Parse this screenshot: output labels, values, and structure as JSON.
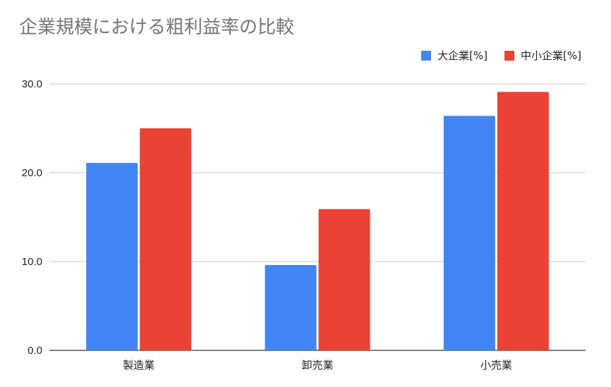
{
  "chart_data": {
    "type": "bar",
    "title": "企業規模における粗利益率の比較",
    "xlabel": "",
    "ylabel": "",
    "categories": [
      "製造業",
      "卸売業",
      "小売業"
    ],
    "series": [
      {
        "name": "大企業[%]",
        "color": "#4285f4",
        "values": [
          21.1,
          9.6,
          26.4
        ]
      },
      {
        "name": "中小企業[%]",
        "color": "#ea4335",
        "values": [
          25.0,
          15.9,
          29.1
        ]
      }
    ],
    "ylim": [
      0,
      30
    ],
    "yticks": [
      "0.0",
      "10.0",
      "20.0",
      "30.0"
    ],
    "grid": true,
    "legend_position": "top-right"
  }
}
